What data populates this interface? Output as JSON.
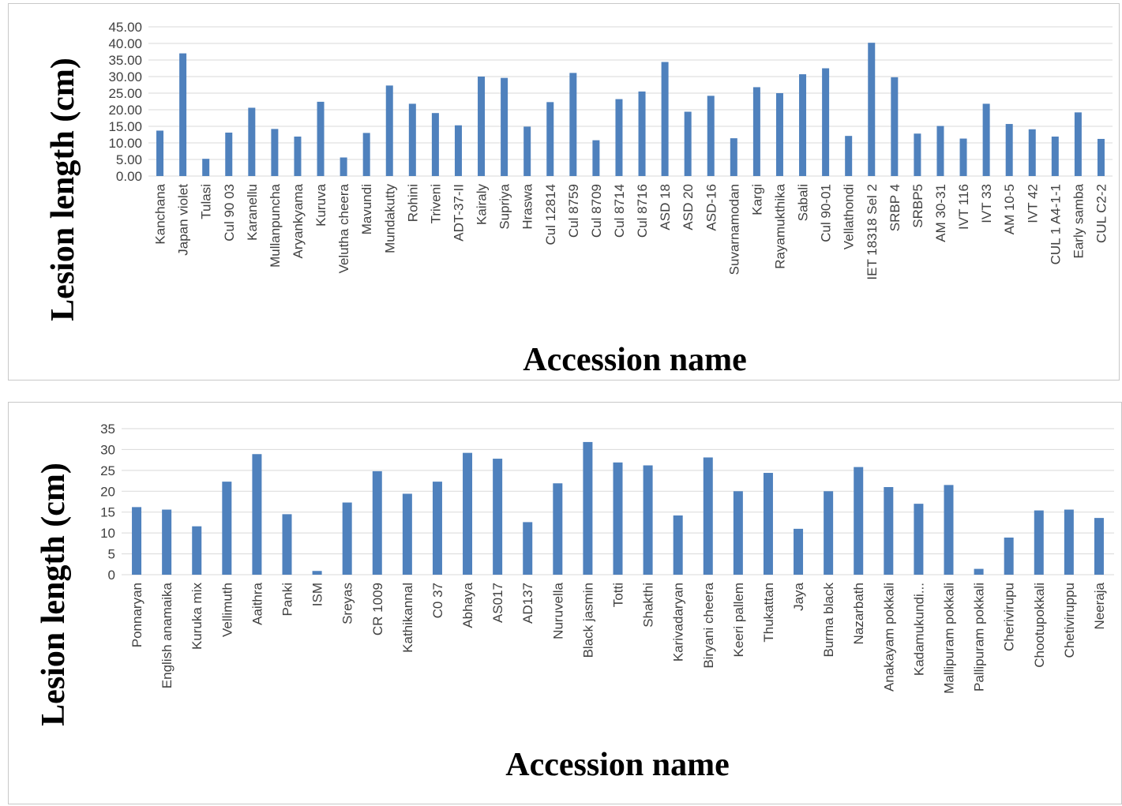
{
  "chart_data": [
    {
      "type": "bar",
      "xlabel": "Accession name",
      "ylabel": "Lesion length (cm)",
      "ylim": [
        0,
        45
      ],
      "yticks": [
        "0.00",
        "5.00",
        "10.00",
        "15.00",
        "20.00",
        "25.00",
        "30.00",
        "35.00",
        "40.00",
        "45.00"
      ],
      "grid": true,
      "bar_color": "#4f81bd",
      "categories": [
        "Kanchana",
        "Japan violet",
        "Tulasi",
        "Cul 90  03",
        "Karanellu",
        "Mullanpuncha",
        "Aryankyama",
        "Kuruva",
        "Velutha cheera",
        "Mavundi",
        "Mundakutty",
        "Rohini",
        "Triveni",
        "ADT-37-II",
        "Kairaly",
        "Supriya",
        "Hraswa",
        "Cul 12814",
        "Cul 8759",
        "Cul 8709",
        "Cul 8714",
        "Cul 8716",
        "ASD 18",
        "ASD 20",
        "ASD-16",
        "Suvarnamodan",
        "Kargi",
        "Rayamukthika",
        "Sabali",
        "Cul 90-01",
        "Vellathondi",
        "IET 18318 Sel 2",
        "SRBP 4",
        "SRBP5",
        "AM 30-31",
        "IVT 116",
        "IVT 33",
        "AM 10-5",
        "IVT 42",
        "CUL 1 A4-1-1",
        "Early samba",
        "CUL C2-2"
      ],
      "values": [
        13.7,
        37.0,
        5.2,
        13.1,
        20.6,
        14.2,
        11.9,
        22.4,
        5.6,
        13.0,
        27.3,
        21.8,
        19.0,
        15.3,
        30.0,
        29.6,
        14.9,
        22.3,
        31.1,
        10.8,
        23.2,
        25.5,
        34.4,
        19.4,
        24.2,
        11.4,
        26.8,
        25.0,
        30.7,
        32.5,
        12.1,
        40.2,
        29.8,
        12.8,
        15.1,
        11.3,
        21.8,
        15.7,
        14.1,
        11.9,
        19.2,
        11.2
      ]
    },
    {
      "type": "bar",
      "xlabel": "Accession name",
      "ylabel": "Lesion length (cm)",
      "ylim": [
        0,
        35
      ],
      "yticks": [
        "0",
        "5",
        "10",
        "15",
        "20",
        "25",
        "30",
        "35"
      ],
      "grid": true,
      "bar_color": "#4f81bd",
      "categories": [
        "Ponnaryan",
        "English anamaika",
        "Kuruka mix",
        "Vellimuth",
        "Aaithra",
        "Panki",
        "ISM",
        "Sreyas",
        "CR 1009",
        "Kathikannal",
        "C0 37",
        "Abhaya",
        "AS017",
        "AD137",
        "Nuruvella",
        "Black jasmin",
        "Totti",
        "Shakthi",
        "Karivadaryan",
        "Biryani cheera",
        "Keeri pallem",
        "Thukattan",
        "Jaya",
        "Burma black",
        "Nazarbath",
        "Anakayam pokkali",
        "Kadamukundi...",
        "Mallipuram pokkali",
        "Pallipuram pokkali",
        "Cherivirupu",
        "Chootupokkali",
        "Chetiviruppu",
        "Neeraja"
      ],
      "values": [
        16.2,
        15.6,
        11.6,
        22.3,
        28.9,
        14.5,
        0.9,
        17.3,
        24.8,
        19.4,
        22.3,
        29.2,
        27.8,
        12.6,
        21.9,
        31.8,
        26.9,
        26.2,
        14.2,
        28.1,
        20.0,
        24.4,
        11.0,
        20.0,
        25.8,
        21.0,
        17.0,
        21.5,
        1.4,
        8.9,
        15.4,
        15.6,
        13.6
      ]
    }
  ]
}
